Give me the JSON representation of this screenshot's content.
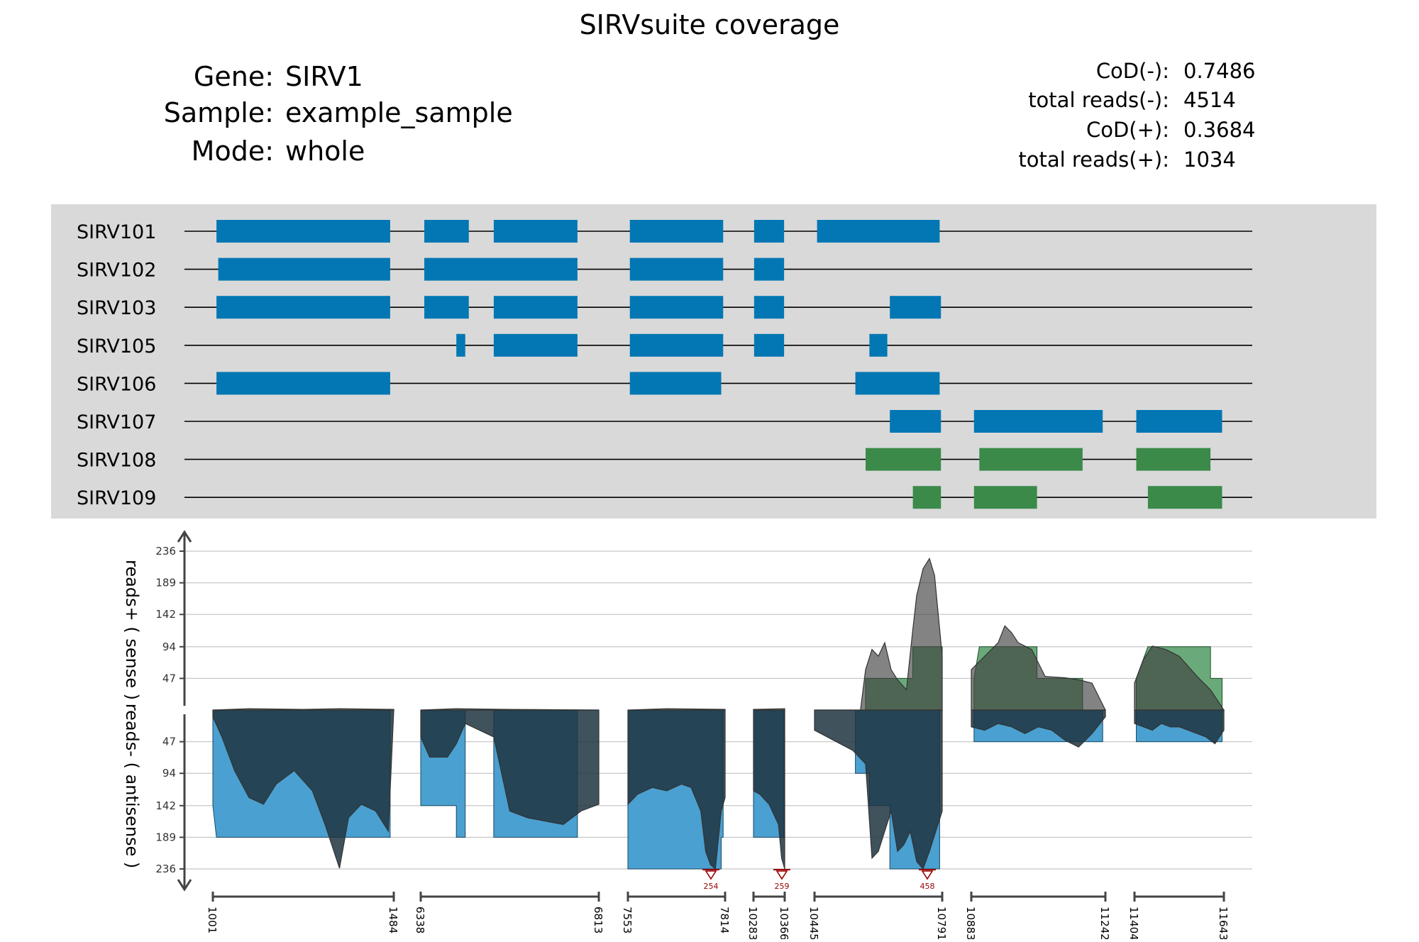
{
  "header": {
    "title": "SIRVsuite coverage",
    "gene_label": "Gene:",
    "gene": "SIRV1",
    "sample_label": "Sample:",
    "sample": "example_sample",
    "mode_label": "Mode:",
    "mode": "whole"
  },
  "stats": [
    {
      "label": "CoD(-):",
      "value": "0.7486"
    },
    {
      "label": "total reads(-):",
      "value": "4514"
    },
    {
      "label": "CoD(+):",
      "value": "0.3684"
    },
    {
      "label": "total reads(+):",
      "value": "1034"
    }
  ],
  "colors": {
    "antisense_exon": "#0277b3",
    "sense_exon": "#3b8a4a",
    "annotation_bg": "#d9d9d9",
    "coverage_fill": "#1f3440",
    "coverage_outline": "#555555",
    "expected_antisense": "#4aa0d0",
    "expected_sense": "#6aaa7a",
    "marker": "#990000"
  },
  "chart_data": {
    "type": "area",
    "y_axis_label_sense": "reads+ ( sense )",
    "y_axis_label_antisense": "reads- ( antisense )",
    "y_ticks_sense": [
      "47",
      "94",
      "142",
      "189",
      "236"
    ],
    "y_ticks_antisense": [
      "47",
      "94",
      "142",
      "189",
      "236"
    ],
    "y_tick_values": [
      47,
      94,
      142,
      189,
      236
    ],
    "ylim": [
      -236,
      236
    ],
    "grid": true,
    "segments": [
      {
        "start": "1001",
        "end": "1484"
      },
      {
        "start": "6338",
        "end": "6813"
      },
      {
        "start": "7553",
        "end": "7814"
      },
      {
        "start": "10283",
        "end": "10366"
      },
      {
        "start": "10445",
        "end": "10791"
      },
      {
        "start": "10883",
        "end": "11242"
      },
      {
        "start": "11404",
        "end": "11643"
      }
    ],
    "truncation_markers": [
      {
        "segment": 2,
        "value": "254"
      },
      {
        "segment": 3,
        "value": "259"
      },
      {
        "segment": 4,
        "value": "458"
      }
    ],
    "transcripts": [
      {
        "name": "SIRV101",
        "strand": "-",
        "exons": [
          [
            0,
            0.02,
            0.98
          ],
          [
            1,
            0.02,
            0.27
          ],
          [
            1,
            0.41,
            0.88
          ],
          [
            2,
            0.02,
            0.98
          ],
          [
            3,
            0.02,
            0.98
          ],
          [
            4,
            0.02,
            0.98
          ]
        ]
      },
      {
        "name": "SIRV102",
        "strand": "-",
        "exons": [
          [
            0,
            0.03,
            0.98
          ],
          [
            1,
            0.02,
            0.88
          ],
          [
            2,
            0.02,
            0.98
          ],
          [
            3,
            0.02,
            0.98
          ]
        ]
      },
      {
        "name": "SIRV103",
        "strand": "-",
        "exons": [
          [
            0,
            0.02,
            0.98
          ],
          [
            1,
            0.02,
            0.27
          ],
          [
            1,
            0.41,
            0.88
          ],
          [
            2,
            0.02,
            0.98
          ],
          [
            3,
            0.02,
            0.98
          ],
          [
            4,
            0.59,
            0.99
          ]
        ]
      },
      {
        "name": "SIRV105",
        "strand": "-",
        "exons": [
          [
            1,
            0.2,
            0.25
          ],
          [
            1,
            0.41,
            0.88
          ],
          [
            2,
            0.02,
            0.98
          ],
          [
            3,
            0.02,
            0.98
          ],
          [
            4,
            0.43,
            0.57
          ]
        ]
      },
      {
        "name": "SIRV106",
        "strand": "-",
        "exons": [
          [
            0,
            0.02,
            0.98
          ],
          [
            2,
            0.02,
            0.96
          ],
          [
            4,
            0.32,
            0.98
          ]
        ]
      },
      {
        "name": "SIRV107",
        "strand": "-",
        "exons": [
          [
            4,
            0.59,
            0.99
          ],
          [
            5,
            0.02,
            0.98
          ],
          [
            6,
            0.02,
            0.98
          ]
        ]
      },
      {
        "name": "SIRV108",
        "strand": "+",
        "exons": [
          [
            4,
            0.4,
            0.99
          ],
          [
            5,
            0.06,
            0.83
          ],
          [
            6,
            0.02,
            0.85
          ]
        ]
      },
      {
        "name": "SIRV109",
        "strand": "+",
        "exons": [
          [
            4,
            0.77,
            0.99
          ],
          [
            5,
            0.02,
            0.49
          ],
          [
            6,
            0.15,
            0.98
          ]
        ]
      }
    ],
    "sense_expected": [
      {
        "segment": 4,
        "steps": [
          [
            0.0,
            0
          ],
          [
            0.4,
            0
          ],
          [
            0.4,
            47
          ],
          [
            0.77,
            47
          ],
          [
            0.77,
            94
          ],
          [
            1.0,
            94
          ]
        ]
      },
      {
        "segment": 5,
        "steps": [
          [
            0.02,
            47
          ],
          [
            0.06,
            94
          ],
          [
            0.49,
            94
          ],
          [
            0.49,
            47
          ],
          [
            0.83,
            47
          ],
          [
            0.83,
            0
          ]
        ]
      },
      {
        "segment": 6,
        "steps": [
          [
            0.02,
            47
          ],
          [
            0.15,
            94
          ],
          [
            0.85,
            94
          ],
          [
            0.85,
            47
          ],
          [
            0.98,
            47
          ]
        ]
      }
    ],
    "antisense_expected": [
      {
        "segment": 0,
        "steps": [
          [
            0.0,
            142
          ],
          [
            0.02,
            189
          ],
          [
            0.98,
            189
          ]
        ]
      },
      {
        "segment": 1,
        "steps": [
          [
            0.0,
            142
          ],
          [
            0.2,
            142
          ],
          [
            0.2,
            189
          ],
          [
            0.25,
            189
          ],
          [
            0.25,
            0
          ],
          [
            0.41,
            0
          ],
          [
            0.41,
            189
          ],
          [
            0.88,
            189
          ]
        ]
      },
      {
        "segment": 2,
        "steps": [
          [
            0.0,
            236
          ],
          [
            0.96,
            236
          ],
          [
            0.96,
            189
          ],
          [
            0.98,
            189
          ]
        ]
      },
      {
        "segment": 3,
        "steps": [
          [
            0.0,
            189
          ],
          [
            0.98,
            189
          ]
        ]
      },
      {
        "segment": 4,
        "steps": [
          [
            0.32,
            94
          ],
          [
            0.43,
            94
          ],
          [
            0.43,
            142
          ],
          [
            0.59,
            142
          ],
          [
            0.59,
            236
          ],
          [
            0.98,
            236
          ]
        ]
      },
      {
        "segment": 5,
        "steps": [
          [
            0.02,
            47
          ],
          [
            0.98,
            47
          ]
        ]
      },
      {
        "segment": 6,
        "steps": [
          [
            0.02,
            47
          ],
          [
            0.98,
            47
          ]
        ]
      }
    ],
    "sense_coverage": [
      {
        "segment": 0,
        "points": [
          [
            0.0,
            0
          ],
          [
            0.2,
            2
          ],
          [
            0.5,
            1
          ],
          [
            0.7,
            2
          ],
          [
            1.0,
            1
          ]
        ]
      },
      {
        "segment": 1,
        "points": [
          [
            0.0,
            0
          ],
          [
            0.2,
            2
          ],
          [
            0.5,
            1
          ],
          [
            1.0,
            0
          ]
        ]
      },
      {
        "segment": 2,
        "points": [
          [
            0.0,
            0
          ],
          [
            0.4,
            2
          ],
          [
            1.0,
            1
          ]
        ]
      },
      {
        "segment": 3,
        "points": [
          [
            0.0,
            1
          ],
          [
            1.0,
            2
          ]
        ]
      },
      {
        "segment": 4,
        "points": [
          [
            0.0,
            0
          ],
          [
            0.36,
            0
          ],
          [
            0.4,
            60
          ],
          [
            0.45,
            90
          ],
          [
            0.5,
            80
          ],
          [
            0.55,
            100
          ],
          [
            0.6,
            60
          ],
          [
            0.65,
            45
          ],
          [
            0.72,
            30
          ],
          [
            0.77,
            120
          ],
          [
            0.8,
            170
          ],
          [
            0.85,
            210
          ],
          [
            0.9,
            225
          ],
          [
            0.94,
            200
          ],
          [
            0.98,
            120
          ],
          [
            1.0,
            80
          ]
        ]
      },
      {
        "segment": 5,
        "points": [
          [
            0.0,
            60
          ],
          [
            0.1,
            80
          ],
          [
            0.2,
            100
          ],
          [
            0.25,
            125
          ],
          [
            0.3,
            115
          ],
          [
            0.35,
            100
          ],
          [
            0.45,
            90
          ],
          [
            0.55,
            50
          ],
          [
            0.7,
            48
          ],
          [
            0.8,
            45
          ],
          [
            0.9,
            40
          ],
          [
            1.0,
            0
          ]
        ]
      },
      {
        "segment": 6,
        "points": [
          [
            0.0,
            40
          ],
          [
            0.1,
            75
          ],
          [
            0.2,
            95
          ],
          [
            0.35,
            90
          ],
          [
            0.5,
            80
          ],
          [
            0.6,
            65
          ],
          [
            0.7,
            50
          ],
          [
            0.85,
            30
          ],
          [
            0.95,
            10
          ],
          [
            1.0,
            0
          ]
        ]
      }
    ],
    "antisense_coverage": [
      {
        "segment": 0,
        "points": [
          [
            0.0,
            10
          ],
          [
            0.05,
            40
          ],
          [
            0.12,
            90
          ],
          [
            0.2,
            130
          ],
          [
            0.28,
            140
          ],
          [
            0.35,
            110
          ],
          [
            0.45,
            90
          ],
          [
            0.55,
            120
          ],
          [
            0.62,
            170
          ],
          [
            0.7,
            235
          ],
          [
            0.75,
            160
          ],
          [
            0.82,
            140
          ],
          [
            0.9,
            150
          ],
          [
            0.97,
            180
          ],
          [
            1.0,
            0
          ]
        ]
      },
      {
        "segment": 1,
        "points": [
          [
            0.0,
            40
          ],
          [
            0.05,
            70
          ],
          [
            0.15,
            70
          ],
          [
            0.2,
            50
          ],
          [
            0.25,
            20
          ],
          [
            0.41,
            40
          ],
          [
            0.5,
            150
          ],
          [
            0.6,
            160
          ],
          [
            0.7,
            165
          ],
          [
            0.8,
            170
          ],
          [
            0.9,
            150
          ],
          [
            1.0,
            140
          ]
        ]
      },
      {
        "segment": 2,
        "points": [
          [
            0.0,
            140
          ],
          [
            0.1,
            125
          ],
          [
            0.25,
            115
          ],
          [
            0.4,
            120
          ],
          [
            0.55,
            110
          ],
          [
            0.65,
            115
          ],
          [
            0.75,
            150
          ],
          [
            0.8,
            210
          ],
          [
            0.85,
            230
          ],
          [
            0.9,
            250
          ],
          [
            0.96,
            150
          ],
          [
            1.0,
            130
          ]
        ]
      },
      {
        "segment": 3,
        "points": [
          [
            0.0,
            120
          ],
          [
            0.2,
            125
          ],
          [
            0.5,
            140
          ],
          [
            0.8,
            170
          ],
          [
            0.9,
            220
          ],
          [
            1.0,
            250
          ]
        ]
      },
      {
        "segment": 4,
        "points": [
          [
            0.0,
            30
          ],
          [
            0.1,
            40
          ],
          [
            0.2,
            50
          ],
          [
            0.3,
            60
          ],
          [
            0.4,
            80
          ],
          [
            0.45,
            220
          ],
          [
            0.5,
            210
          ],
          [
            0.55,
            180
          ],
          [
            0.6,
            150
          ],
          [
            0.65,
            210
          ],
          [
            0.7,
            200
          ],
          [
            0.75,
            180
          ],
          [
            0.8,
            225
          ],
          [
            0.85,
            240
          ],
          [
            0.9,
            210
          ],
          [
            0.95,
            180
          ],
          [
            1.0,
            150
          ]
        ]
      },
      {
        "segment": 5,
        "points": [
          [
            0.0,
            25
          ],
          [
            0.1,
            30
          ],
          [
            0.2,
            20
          ],
          [
            0.3,
            25
          ],
          [
            0.4,
            35
          ],
          [
            0.5,
            25
          ],
          [
            0.6,
            30
          ],
          [
            0.7,
            45
          ],
          [
            0.8,
            55
          ],
          [
            0.9,
            35
          ],
          [
            1.0,
            10
          ]
        ]
      },
      {
        "segment": 6,
        "points": [
          [
            0.0,
            20
          ],
          [
            0.1,
            25
          ],
          [
            0.2,
            30
          ],
          [
            0.3,
            20
          ],
          [
            0.4,
            25
          ],
          [
            0.5,
            25
          ],
          [
            0.6,
            30
          ],
          [
            0.7,
            35
          ],
          [
            0.8,
            40
          ],
          [
            0.9,
            50
          ],
          [
            1.0,
            30
          ]
        ]
      }
    ]
  }
}
